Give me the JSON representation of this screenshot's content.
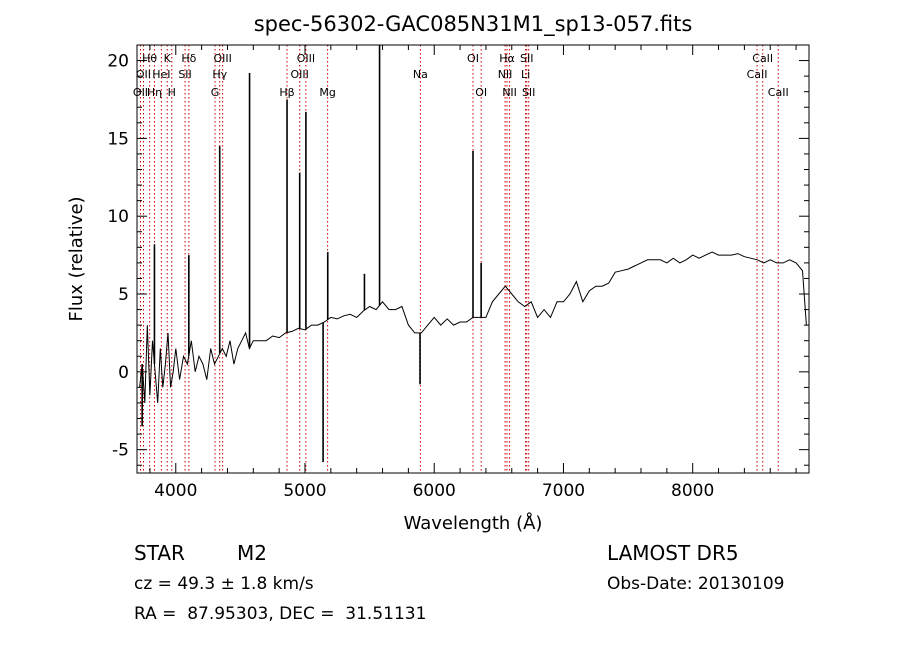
{
  "chart_data": {
    "type": "line",
    "title": "spec-56302-GAC085N31M1_sp13-057.fits",
    "xlabel": "Wavelength (Å)",
    "ylabel": "Flux (relative)",
    "xlim": [
      3700,
      8900
    ],
    "ylim": [
      -6.5,
      21
    ],
    "xticks": [
      4000,
      5000,
      6000,
      7000,
      8000
    ],
    "yticks": [
      -5,
      0,
      5,
      10,
      15,
      20
    ],
    "grid": false,
    "series": [
      {
        "values_desc": "spectrum",
        "x": [
          3720,
          3740,
          3760,
          3780,
          3800,
          3820,
          3840,
          3860,
          3880,
          3900,
          3920,
          3940,
          3960,
          3980,
          4000,
          4030,
          4060,
          4090,
          4120,
          4150,
          4180,
          4210,
          4240,
          4270,
          4300,
          4330,
          4360,
          4390,
          4420,
          4450,
          4480,
          4510,
          4540,
          4570,
          4600,
          4650,
          4700,
          4750,
          4800,
          4850,
          4900,
          4950,
          5000,
          5050,
          5100,
          5150,
          5200,
          5250,
          5300,
          5350,
          5400,
          5450,
          5500,
          5550,
          5600,
          5650,
          5700,
          5750,
          5800,
          5850,
          5900,
          5950,
          6000,
          6050,
          6100,
          6150,
          6200,
          6250,
          6300,
          6350,
          6400,
          6450,
          6500,
          6550,
          6600,
          6650,
          6700,
          6750,
          6800,
          6850,
          6900,
          6950,
          7000,
          7050,
          7100,
          7150,
          7200,
          7250,
          7300,
          7350,
          7400,
          7450,
          7500,
          7550,
          7600,
          7650,
          7700,
          7750,
          7800,
          7850,
          7900,
          7950,
          8000,
          8050,
          8100,
          8150,
          8200,
          8250,
          8300,
          8350,
          8400,
          8450,
          8500,
          8550,
          8600,
          8650,
          8700,
          8750,
          8800,
          8850,
          8880
        ],
        "y": [
          -1.0,
          0.5,
          -2.0,
          3.0,
          -1.5,
          2.0,
          0.0,
          -2.0,
          1.5,
          -1.0,
          0.5,
          2.5,
          -1.0,
          0.0,
          1.5,
          -0.5,
          1.0,
          0.5,
          2.0,
          0.0,
          1.0,
          0.5,
          -0.5,
          1.5,
          0.5,
          1.0,
          1.5,
          1.0,
          2.0,
          0.5,
          1.5,
          2.0,
          2.5,
          1.5,
          2.0,
          2.0,
          2.0,
          2.3,
          2.2,
          2.5,
          2.6,
          2.8,
          2.7,
          3.0,
          3.0,
          3.2,
          3.5,
          3.4,
          3.6,
          3.7,
          3.5,
          3.9,
          4.2,
          4.0,
          4.5,
          4.0,
          4.0,
          4.2,
          3.0,
          2.5,
          2.5,
          3.0,
          3.5,
          3.0,
          3.4,
          3.0,
          3.2,
          3.2,
          3.5,
          3.5,
          3.5,
          4.5,
          5.0,
          5.5,
          5.0,
          4.5,
          4.2,
          4.5,
          3.5,
          4.0,
          3.5,
          4.5,
          4.5,
          5.0,
          5.8,
          4.5,
          5.2,
          5.5,
          5.5,
          5.7,
          6.4,
          6.5,
          6.6,
          6.8,
          7.0,
          7.2,
          7.2,
          7.2,
          7.0,
          7.3,
          7.0,
          7.2,
          7.5,
          7.3,
          7.5,
          7.7,
          7.5,
          7.5,
          7.5,
          7.6,
          7.4,
          7.3,
          7.2,
          7.0,
          7.2,
          7.0,
          7.0,
          7.2,
          7.0,
          6.5,
          3.0
        ]
      },
      {
        "values_desc": "emission lines",
        "x": [
          3835,
          4101,
          4340,
          4571,
          4861,
          4959,
          5007,
          5176,
          5460,
          5577,
          6300,
          6363
        ],
        "y": [
          8.2,
          7.5,
          14.5,
          19.2,
          17.5,
          12.8,
          16.7,
          7.7,
          6.3,
          21.0,
          14.2,
          7.0
        ]
      },
      {
        "values_desc": "absorption dips",
        "x": [
          3740,
          5140,
          5890
        ],
        "y": [
          -3.5,
          -5.8,
          -0.8
        ]
      }
    ],
    "line_markers": [
      {
        "x": 3727,
        "label": "OII",
        "row": 3
      },
      {
        "x": 3750,
        "label": "OII",
        "row": 2
      },
      {
        "x": 3798,
        "label": "Hθ",
        "row": 1
      },
      {
        "x": 3835,
        "label": "Hη",
        "row": 3
      },
      {
        "x": 3889,
        "label": "HeI",
        "row": 2
      },
      {
        "x": 3934,
        "label": "K",
        "row": 1
      },
      {
        "x": 3969,
        "label": "H",
        "row": 3
      },
      {
        "x": 4072,
        "label": "SII",
        "row": 2
      },
      {
        "x": 4101,
        "label": "Hδ",
        "row": 1
      },
      {
        "x": 4304,
        "label": "G",
        "row": 3
      },
      {
        "x": 4340,
        "label": "Hγ",
        "row": 2
      },
      {
        "x": 4363,
        "label": "OIII",
        "row": 1
      },
      {
        "x": 4861,
        "label": "Hβ",
        "row": 3
      },
      {
        "x": 4959,
        "label": "OIII",
        "row": 2
      },
      {
        "x": 5007,
        "label": "OIII",
        "row": 1
      },
      {
        "x": 5175,
        "label": "Mg",
        "row": 3
      },
      {
        "x": 5893,
        "label": "Na",
        "row": 2
      },
      {
        "x": 6300,
        "label": "OI",
        "row": 1
      },
      {
        "x": 6363,
        "label": "OI",
        "row": 3
      },
      {
        "x": 6548,
        "label": "NII",
        "row": 2
      },
      {
        "x": 6563,
        "label": "Hα",
        "row": 1
      },
      {
        "x": 6583,
        "label": "NII",
        "row": 3
      },
      {
        "x": 6707,
        "label": "Li",
        "row": 2
      },
      {
        "x": 6716,
        "label": "SII",
        "row": 1
      },
      {
        "x": 6731,
        "label": "SII",
        "row": 3
      },
      {
        "x": 8498,
        "label": "CaII",
        "row": 2
      },
      {
        "x": 8542,
        "label": "CaII",
        "row": 1
      },
      {
        "x": 8662,
        "label": "CaII",
        "row": 3
      }
    ]
  },
  "footer": {
    "class_label": "STAR",
    "subclass": "M2",
    "cz_text": "cz = 49.3 ± 1.8 km/s",
    "coords_text": "RA =  87.95303, DEC =  31.51131",
    "survey": "LAMOST DR5",
    "obs_date": "Obs-Date: 20130109"
  },
  "colors": {
    "line_marker": "#cc0000",
    "spectrum": "#000000"
  }
}
